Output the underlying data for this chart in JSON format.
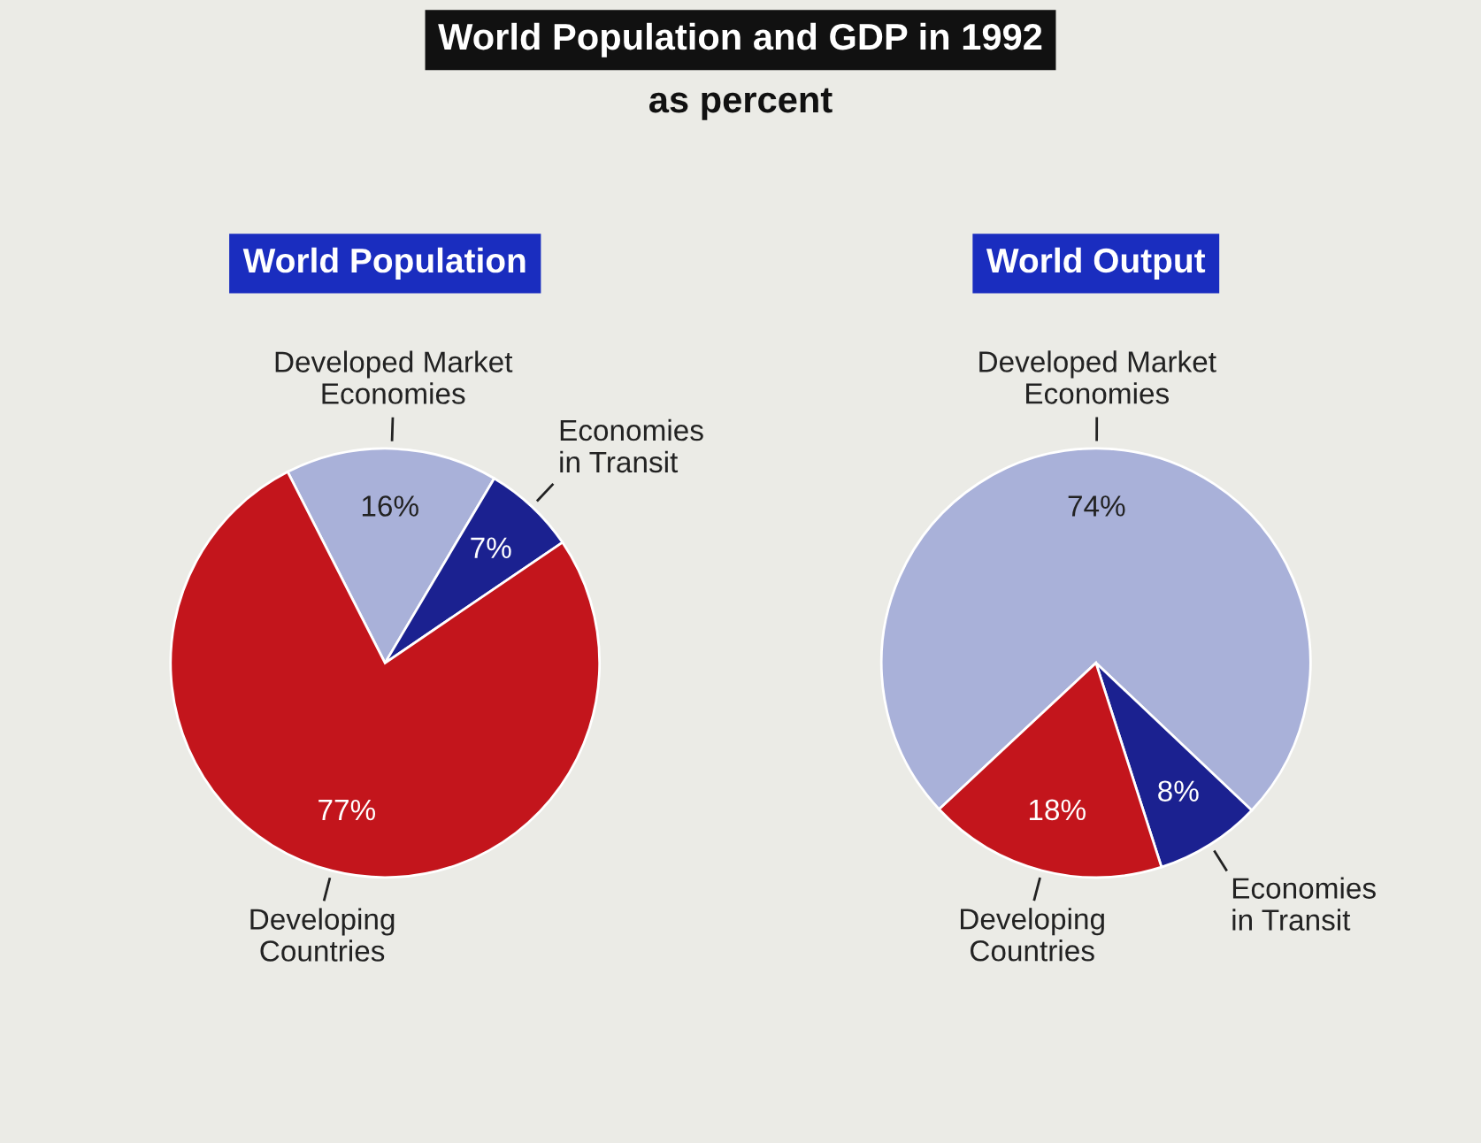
{
  "chart_data": [
    {
      "type": "other",
      "title": "World Population and GDP in 1992",
      "subtitle": "as percent"
    },
    {
      "type": "pie",
      "title": "World Population",
      "categories": [
        "Developed Market\nEconomies",
        "Economies\nin Transit",
        "Developing\nCountries"
      ],
      "values": [
        16,
        7,
        77
      ],
      "value_labels": [
        "16%",
        "7%",
        "77%"
      ],
      "colors": [
        "#a9b1d9",
        "#1b2190",
        "#c3151c"
      ],
      "legend": false
    },
    {
      "type": "pie",
      "title": "World Output",
      "categories": [
        "Developed Market\nEconomies",
        "Economies\nin Transit",
        "Developing\nCountries"
      ],
      "values": [
        74,
        8,
        18
      ],
      "value_labels": [
        "74%",
        "8%",
        "18%"
      ],
      "colors": [
        "#a9b1d9",
        "#1b2190",
        "#c3151c"
      ],
      "legend": false
    }
  ]
}
